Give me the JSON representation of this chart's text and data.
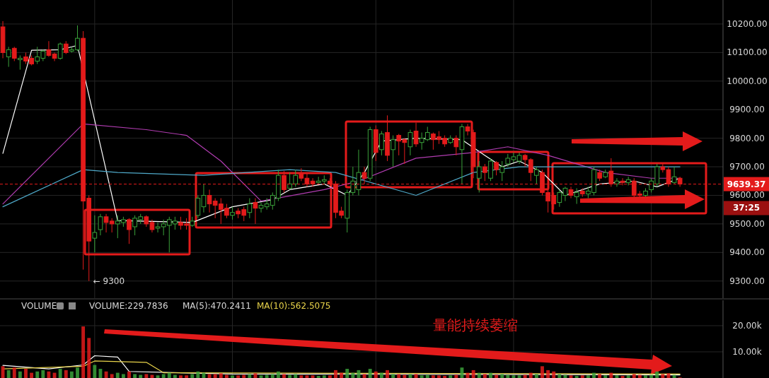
{
  "chart_data": [
    {
      "type": "candlestick",
      "categories": [
        null,
        null,
        null,
        null,
        null,
        null,
        null,
        null,
        null,
        null,
        null,
        null,
        null,
        null,
        null,
        null,
        null,
        null,
        null,
        null,
        null,
        null,
        null,
        null,
        null,
        null,
        null,
        null,
        null,
        null,
        null,
        null,
        null,
        null,
        null,
        null,
        null,
        null,
        null,
        null,
        null,
        null,
        null,
        null,
        null,
        null,
        null,
        null,
        null,
        null,
        null,
        null,
        null,
        null,
        null,
        null,
        null,
        null,
        null,
        null,
        null,
        null,
        null,
        null,
        null,
        null,
        null,
        null,
        null,
        null,
        null,
        null,
        null,
        null,
        null,
        null,
        null,
        null,
        null,
        null,
        null,
        null,
        null,
        null,
        null,
        null,
        null,
        null,
        null,
        null,
        null,
        null,
        null,
        null,
        null,
        null,
        null,
        null,
        null,
        null,
        null,
        null,
        null,
        null,
        null,
        null,
        null,
        null,
        null,
        null,
        null,
        null,
        null,
        null,
        null,
        null,
        null,
        null,
        null,
        null,
        null,
        null,
        null,
        null,
        null,
        null
      ],
      "ohlc": [
        [
          10190,
          10210,
          10080,
          10100
        ],
        [
          10085,
          10120,
          10050,
          10110
        ],
        [
          10115,
          10120,
          10070,
          10080
        ],
        [
          10075,
          10090,
          10040,
          10080
        ],
        [
          10085,
          10100,
          10060,
          10070
        ],
        [
          10080,
          10090,
          10055,
          10060
        ],
        [
          10070,
          10120,
          10060,
          10085
        ],
        [
          10080,
          10110,
          10070,
          10105
        ],
        [
          10110,
          10140,
          10085,
          10090
        ],
        [
          10095,
          10100,
          10070,
          10080
        ],
        [
          10080,
          10135,
          10075,
          10130
        ],
        [
          10130,
          10140,
          10095,
          10100
        ],
        [
          10105,
          10120,
          10100,
          10110
        ],
        [
          10110,
          10195,
          10105,
          10150
        ],
        [
          10150,
          10175,
          9340,
          9580
        ],
        [
          9590,
          9600,
          9300,
          9440
        ],
        [
          9450,
          9530,
          9400,
          9470
        ],
        [
          9480,
          9535,
          9460,
          9525
        ],
        [
          9525,
          9535,
          9470,
          9505
        ],
        [
          9510,
          9520,
          9470,
          9500
        ],
        [
          9500,
          9530,
          9450,
          9510
        ],
        [
          9505,
          9525,
          9490,
          9515
        ],
        [
          9515,
          9520,
          9430,
          9480
        ],
        [
          9490,
          9530,
          9460,
          9520
        ],
        [
          9515,
          9535,
          9500,
          9525
        ],
        [
          9525,
          9530,
          9490,
          9500
        ],
        [
          9505,
          9515,
          9470,
          9480
        ],
        [
          9485,
          9505,
          9470,
          9490
        ],
        [
          9490,
          9515,
          9460,
          9500
        ],
        [
          9495,
          9525,
          9400,
          9515
        ],
        [
          9500,
          9525,
          9480,
          9510
        ],
        [
          9505,
          9525,
          9480,
          9495
        ],
        [
          9500,
          9520,
          9480,
          9495
        ],
        [
          9495,
          9525,
          9490,
          9510
        ],
        [
          9530,
          9600,
          9520,
          9590
        ],
        [
          9560,
          9640,
          9540,
          9600
        ],
        [
          9600,
          9620,
          9540,
          9570
        ],
        [
          9580,
          9590,
          9520,
          9565
        ],
        [
          9570,
          9590,
          9500,
          9550
        ],
        [
          9555,
          9570,
          9520,
          9530
        ],
        [
          9530,
          9560,
          9515,
          9540
        ],
        [
          9545,
          9555,
          9520,
          9535
        ],
        [
          9550,
          9560,
          9510,
          9530
        ],
        [
          9540,
          9590,
          9520,
          9570
        ],
        [
          9575,
          9590,
          9500,
          9555
        ],
        [
          9555,
          9575,
          9540,
          9565
        ],
        [
          9560,
          9590,
          9550,
          9570
        ],
        [
          9565,
          9610,
          9550,
          9600
        ],
        [
          9590,
          9690,
          9580,
          9670
        ],
        [
          9670,
          9685,
          9610,
          9620
        ],
        [
          9625,
          9680,
          9620,
          9640
        ],
        [
          9640,
          9690,
          9630,
          9670
        ],
        [
          9675,
          9695,
          9650,
          9660
        ],
        [
          9660,
          9680,
          9630,
          9640
        ],
        [
          9650,
          9660,
          9630,
          9640
        ],
        [
          9645,
          9665,
          9640,
          9650
        ],
        [
          9650,
          9670,
          9640,
          9655
        ],
        [
          9650,
          9660,
          9630,
          9640
        ],
        [
          9640,
          9650,
          9520,
          9540
        ],
        [
          9545,
          9560,
          9520,
          9530
        ],
        [
          9520,
          9620,
          9470,
          9610
        ],
        [
          9610,
          9700,
          9600,
          9650
        ],
        [
          9620,
          9760,
          9600,
          9680
        ],
        [
          9680,
          9700,
          9640,
          9660
        ],
        [
          9660,
          9840,
          9650,
          9830
        ],
        [
          9830,
          9845,
          9720,
          9750
        ],
        [
          9760,
          9825,
          9740,
          9815
        ],
        [
          9820,
          9880,
          9720,
          9740
        ],
        [
          9760,
          9810,
          9700,
          9795
        ],
        [
          9810,
          9815,
          9740,
          9790
        ],
        [
          9795,
          9800,
          9710,
          9785
        ],
        [
          9770,
          9830,
          9740,
          9820
        ],
        [
          9825,
          9855,
          9770,
          9780
        ],
        [
          9785,
          9820,
          9760,
          9800
        ],
        [
          9795,
          9840,
          9790,
          9820
        ],
        [
          9815,
          9820,
          9760,
          9795
        ],
        [
          9805,
          9825,
          9780,
          9795
        ],
        [
          9800,
          9810,
          9770,
          9780
        ],
        [
          9785,
          9810,
          9780,
          9800
        ],
        [
          9800,
          9810,
          9740,
          9770
        ],
        [
          9760,
          9850,
          9640,
          9840
        ],
        [
          9840,
          9850,
          9810,
          9825
        ],
        [
          9820,
          9830,
          9660,
          9700
        ],
        [
          9660,
          9720,
          9610,
          9700
        ],
        [
          9700,
          9710,
          9650,
          9680
        ],
        [
          9660,
          9730,
          9650,
          9720
        ],
        [
          9715,
          9720,
          9670,
          9690
        ],
        [
          9680,
          9720,
          9650,
          9700
        ],
        [
          9710,
          9745,
          9700,
          9730
        ],
        [
          9725,
          9750,
          9715,
          9735
        ],
        [
          9720,
          9750,
          9710,
          9740
        ],
        [
          9740,
          9745,
          9700,
          9725
        ],
        [
          9725,
          9730,
          9650,
          9680
        ],
        [
          9670,
          9700,
          9640,
          9690
        ],
        [
          9680,
          9690,
          9600,
          9610
        ],
        [
          9610,
          9620,
          9540,
          9580
        ],
        [
          9600,
          9610,
          9550,
          9570
        ],
        [
          9575,
          9620,
          9560,
          9610
        ],
        [
          9600,
          9630,
          9580,
          9625
        ],
        [
          9620,
          9630,
          9590,
          9600
        ],
        [
          9595,
          9625,
          9570,
          9610
        ],
        [
          9615,
          9625,
          9595,
          9605
        ],
        [
          9605,
          9630,
          9590,
          9615
        ],
        [
          9610,
          9700,
          9600,
          9690
        ],
        [
          9680,
          9690,
          9650,
          9660
        ],
        [
          9665,
          9690,
          9660,
          9680
        ],
        [
          9685,
          9730,
          9630,
          9640
        ],
        [
          9640,
          9660,
          9630,
          9650
        ],
        [
          9650,
          9660,
          9635,
          9645
        ],
        [
          9645,
          9665,
          9635,
          9655
        ],
        [
          9650,
          9660,
          9590,
          9600
        ],
        [
          9605,
          9615,
          9590,
          9600
        ],
        [
          9600,
          9625,
          9595,
          9615
        ],
        [
          9620,
          9660,
          9610,
          9650
        ],
        [
          9640,
          9710,
          9630,
          9700
        ],
        [
          9700,
          9710,
          9680,
          9690
        ],
        [
          9690,
          9700,
          9630,
          9640
        ],
        [
          9645,
          9700,
          9640,
          9665
        ],
        [
          9660,
          9665,
          9630,
          9639.37
        ],
        null,
        null,
        null,
        null,
        null,
        null,
        null
      ],
      "colors": [
        "#e31b1b",
        "#3aa13a",
        "#e31b1b",
        "#3aa13a",
        "#e31b1b",
        "#e31b1b",
        "#3aa13a",
        "#3aa13a",
        "#e31b1b",
        "#e31b1b",
        "#3aa13a",
        "#e31b1b",
        "#3aa13a",
        "#3aa13a",
        "#e31b1b",
        "#e31b1b",
        "#3aa13a",
        "#3aa13a",
        "#e31b1b",
        "#e31b1b",
        "#3aa13a",
        "#3aa13a",
        "#e31b1b",
        "#3aa13a",
        "#3aa13a",
        "#e31b1b",
        "#e31b1b",
        "#3aa13a",
        "#3aa13a",
        "#3aa13a",
        "#3aa13a",
        "#e31b1b",
        "#e31b1b",
        "#3aa13a",
        "#3aa13a",
        "#3aa13a",
        "#e31b1b",
        "#e31b1b",
        "#e31b1b",
        "#e31b1b",
        "#3aa13a",
        "#e31b1b",
        "#e31b1b",
        "#3aa13a",
        "#e31b1b",
        "#3aa13a",
        "#3aa13a",
        "#3aa13a",
        "#3aa13a",
        "#e31b1b",
        "#3aa13a",
        "#3aa13a",
        "#e31b1b",
        "#e31b1b",
        "#e31b1b",
        "#3aa13a",
        "#3aa13a",
        "#e31b1b",
        "#e31b1b",
        "#e31b1b",
        "#3aa13a",
        "#3aa13a",
        "#3aa13a",
        "#e31b1b",
        "#3aa13a",
        "#e31b1b",
        "#3aa13a",
        "#e31b1b",
        "#3aa13a",
        "#e31b1b",
        "#e31b1b",
        "#3aa13a",
        "#e31b1b",
        "#3aa13a",
        "#3aa13a",
        "#e31b1b",
        "#e31b1b",
        "#e31b1b",
        "#3aa13a",
        "#e31b1b",
        "#3aa13a",
        "#e31b1b",
        "#e31b1b",
        "#3aa13a",
        "#e31b1b",
        "#3aa13a",
        "#e31b1b",
        "#3aa13a",
        "#3aa13a",
        "#3aa13a",
        "#3aa13a",
        "#e31b1b",
        "#e31b1b",
        "#3aa13a",
        "#e31b1b",
        "#e31b1b",
        "#e31b1b",
        "#3aa13a",
        "#3aa13a",
        "#e31b1b",
        "#3aa13a",
        "#e31b1b",
        "#3aa13a",
        "#3aa13a",
        "#e31b1b",
        "#3aa13a",
        "#e31b1b",
        "#3aa13a",
        "#e31b1b",
        "#3aa13a",
        "#e31b1b",
        "#e31b1b",
        "#3aa13a",
        "#3aa13a",
        "#3aa13a",
        "#e31b1b",
        "#e31b1b",
        "#3aa13a",
        "#e31b1b",
        null,
        null,
        null,
        null,
        null,
        null,
        null
      ],
      "series": [
        {
          "type": "line",
          "color": "#ffffff",
          "values": [
            9747,
            null,
            null,
            null,
            null,
            10108,
            null,
            null,
            null,
            null,
            10110,
            null,
            null,
            10125,
            null,
            null,
            null,
            null,
            null,
            null,
            9512,
            null,
            null,
            null,
            null,
            null,
            null,
            null,
            null,
            null,
            null,
            null,
            null,
            9505,
            null,
            null,
            null,
            null,
            null,
            null,
            9560,
            null,
            null,
            null,
            null,
            null,
            null,
            9585,
            null,
            null,
            9620,
            null,
            null,
            null,
            null,
            null,
            9640,
            null,
            9620,
            null,
            9600,
            null,
            null,
            9680,
            null,
            null,
            9790,
            null,
            null,
            null,
            null,
            null,
            9800,
            null,
            null,
            null,
            null,
            null,
            null,
            null,
            9795,
            null,
            null,
            null,
            9740,
            null,
            null,
            9700,
            null,
            null,
            9720,
            null,
            null,
            null,
            9680,
            null,
            null,
            null,
            9600,
            null,
            null,
            null,
            null,
            null,
            9640,
            null,
            null,
            null,
            null,
            null,
            9650,
            null,
            null,
            null,
            9630,
            null,
            null,
            null,
            9660,
            null,
            null,
            null,
            null,
            null,
            null,
            null
          ]
        },
        {
          "type": "line",
          "color": "#b03cb0",
          "values": [
            9570,
            null,
            null,
            null,
            null,
            null,
            null,
            null,
            null,
            null,
            null,
            null,
            null,
            null,
            9850,
            null,
            null,
            null,
            null,
            null,
            null,
            null,
            null,
            null,
            null,
            9830,
            null,
            null,
            null,
            null,
            null,
            null,
            9810,
            null,
            null,
            null,
            null,
            null,
            9720,
            null,
            null,
            null,
            null,
            null,
            null,
            9580,
            null,
            null,
            null,
            null,
            null,
            null,
            null,
            null,
            null,
            null,
            9620,
            null,
            null,
            null,
            null,
            null,
            9650,
            null,
            null,
            null,
            null,
            null,
            null,
            null,
            null,
            null,
            9730,
            null,
            null,
            null,
            null,
            null,
            null,
            null,
            null,
            null,
            9750,
            null,
            null,
            null,
            null,
            null,
            9770,
            null,
            null,
            null,
            null,
            null,
            null,
            9740,
            null,
            null,
            null,
            null,
            null,
            null,
            null,
            null,
            null,
            9680,
            null,
            null,
            null,
            null,
            null,
            null,
            null,
            9660,
            null,
            null,
            null,
            null,
            9660,
            null,
            null,
            null,
            null,
            null,
            null,
            null
          ]
        },
        {
          "type": "line",
          "color": "#4fa9c9",
          "values": [
            9560,
            null,
            null,
            null,
            null,
            null,
            null,
            null,
            null,
            null,
            null,
            null,
            null,
            null,
            9690,
            null,
            null,
            null,
            null,
            null,
            9680,
            null,
            null,
            null,
            null,
            null,
            null,
            null,
            null,
            null,
            null,
            null,
            null,
            null,
            null,
            9670,
            null,
            null,
            null,
            null,
            null,
            null,
            null,
            null,
            null,
            null,
            null,
            null,
            null,
            null,
            9690,
            null,
            null,
            null,
            null,
            null,
            null,
            null,
            9680,
            null,
            null,
            null,
            null,
            null,
            null,
            null,
            null,
            null,
            null,
            null,
            null,
            null,
            9600,
            null,
            null,
            null,
            null,
            null,
            null,
            null,
            null,
            null,
            9680,
            null,
            null,
            null,
            null,
            null,
            null,
            null,
            9700,
            null,
            null,
            null,
            null,
            null,
            null,
            null,
            null,
            null,
            9700,
            null,
            null,
            null,
            null,
            null,
            null,
            null,
            null,
            null,
            null,
            null,
            null,
            null,
            null,
            null,
            null,
            null,
            9700,
            null,
            null,
            null,
            null,
            null,
            null,
            null
          ]
        }
      ],
      "ylim": [
        9240,
        10284
      ],
      "yticks": [
        {
          "value": 9300,
          "label": "9300.00"
        },
        {
          "value": 9400,
          "label": "9400.00"
        },
        {
          "value": 9500,
          "label": "9500.00"
        },
        {
          "value": 9600,
          "label": "9600.00"
        },
        {
          "value": 9700,
          "label": "9700.00"
        },
        {
          "value": 9800,
          "label": "9800.00"
        },
        {
          "value": 9900,
          "label": "9900.00"
        },
        {
          "value": 10000,
          "label": "10000.00"
        },
        {
          "value": 10100,
          "label": "10100.00"
        },
        {
          "value": 10200,
          "label": "10200.00"
        }
      ],
      "grid": true,
      "tick_labels": "y",
      "ref_lines": [
        {
          "axis": "y",
          "value": 9639.37,
          "label": "9639.37",
          "color": "#e31b1b",
          "line_style": "dashed"
        }
      ],
      "annotations": [
        "← 9300",
        "37:25"
      ]
    },
    {
      "type": "bar",
      "categories": [
        null,
        null,
        null,
        null,
        null,
        null,
        null,
        null,
        null,
        null,
        null,
        null,
        null,
        null,
        null,
        null,
        null,
        null,
        null,
        null,
        null,
        null,
        null,
        null,
        null,
        null,
        null,
        null,
        null,
        null,
        null,
        null,
        null,
        null,
        null,
        null,
        null,
        null,
        null,
        null,
        null,
        null,
        null,
        null,
        null,
        null,
        null,
        null,
        null,
        null,
        null,
        null,
        null,
        null,
        null,
        null,
        null,
        null,
        null,
        null,
        null,
        null,
        null,
        null,
        null,
        null,
        null,
        null,
        null,
        null,
        null,
        null,
        null,
        null,
        null,
        null,
        null,
        null,
        null,
        null,
        null,
        null,
        null,
        null,
        null,
        null,
        null,
        null,
        null,
        null,
        null,
        null,
        null,
        null,
        null,
        null,
        null,
        null,
        null,
        null,
        null,
        null,
        null,
        null,
        null,
        null,
        null,
        null,
        null,
        null,
        null,
        null,
        null,
        null,
        null,
        null,
        null,
        null,
        null,
        null,
        null,
        null,
        null,
        null,
        null,
        null
      ],
      "series": [
        {
          "type": "bar",
          "values": [
            4500,
            3000,
            4000,
            2500,
            3500,
            2000,
            2500,
            3000,
            2500,
            2000,
            3500,
            3000,
            2500,
            4000,
            19700,
            15300,
            5000,
            3500,
            2500,
            1500,
            2000,
            1500,
            2500,
            1500,
            1200,
            1500,
            1200,
            1000,
            1500,
            2000,
            1200,
            1000,
            1000,
            1500,
            2500,
            2000,
            1500,
            1500,
            1800,
            1200,
            1000,
            1000,
            1200,
            1500,
            1800,
            1000,
            1200,
            1500,
            2500,
            1500,
            1200,
            1500,
            1000,
            1000,
            1000,
            800,
            1000,
            1000,
            3000,
            2000,
            3500,
            2000,
            3000,
            1500,
            3500,
            2500,
            2000,
            3000,
            1500,
            1500,
            1200,
            1500,
            1500,
            1000,
            1200,
            1000,
            1000,
            800,
            1000,
            1200,
            4000,
            2000,
            3000,
            2000,
            1500,
            2000,
            1200,
            1500,
            1200,
            1000,
            1000,
            1200,
            2000,
            1500,
            4500,
            3000,
            2500,
            1500,
            1200,
            1000,
            800,
            1000,
            1000,
            2000,
            1500,
            1000,
            2000,
            1000,
            800,
            1000,
            1500,
            1200,
            1000,
            1200,
            2500,
            1500,
            1800,
            1200,
            200,
            null,
            null,
            null,
            null,
            null,
            null,
            null
          ],
          "colors": [
            "#e31b1b",
            "#3aa13a",
            "#e31b1b",
            "#3aa13a",
            "#e31b1b",
            "#e31b1b",
            "#3aa13a",
            "#3aa13a",
            "#e31b1b",
            "#e31b1b",
            "#3aa13a",
            "#e31b1b",
            "#3aa13a",
            "#3aa13a",
            "#e31b1b",
            "#e31b1b",
            "#3aa13a",
            "#3aa13a",
            "#e31b1b",
            "#e31b1b",
            "#3aa13a",
            "#3aa13a",
            "#e31b1b",
            "#3aa13a",
            "#3aa13a",
            "#e31b1b",
            "#e31b1b",
            "#3aa13a",
            "#3aa13a",
            "#3aa13a",
            "#3aa13a",
            "#e31b1b",
            "#e31b1b",
            "#3aa13a",
            "#3aa13a",
            "#3aa13a",
            "#e31b1b",
            "#e31b1b",
            "#e31b1b",
            "#e31b1b",
            "#3aa13a",
            "#e31b1b",
            "#e31b1b",
            "#3aa13a",
            "#e31b1b",
            "#3aa13a",
            "#3aa13a",
            "#3aa13a",
            "#3aa13a",
            "#e31b1b",
            "#3aa13a",
            "#3aa13a",
            "#e31b1b",
            "#e31b1b",
            "#e31b1b",
            "#3aa13a",
            "#3aa13a",
            "#e31b1b",
            "#e31b1b",
            "#e31b1b",
            "#3aa13a",
            "#3aa13a",
            "#3aa13a",
            "#e31b1b",
            "#3aa13a",
            "#e31b1b",
            "#3aa13a",
            "#e31b1b",
            "#3aa13a",
            "#e31b1b",
            "#e31b1b",
            "#3aa13a",
            "#e31b1b",
            "#3aa13a",
            "#3aa13a",
            "#e31b1b",
            "#e31b1b",
            "#e31b1b",
            "#3aa13a",
            "#e31b1b",
            "#3aa13a",
            "#e31b1b",
            "#e31b1b",
            "#3aa13a",
            "#e31b1b",
            "#3aa13a",
            "#e31b1b",
            "#3aa13a",
            "#3aa13a",
            "#3aa13a",
            "#3aa13a",
            "#e31b1b",
            "#e31b1b",
            "#3aa13a",
            "#e31b1b",
            "#e31b1b",
            "#e31b1b",
            "#3aa13a",
            "#3aa13a",
            "#e31b1b",
            "#3aa13a",
            "#e31b1b",
            "#3aa13a",
            "#3aa13a",
            "#e31b1b",
            "#3aa13a",
            "#e31b1b",
            "#3aa13a",
            "#e31b1b",
            "#3aa13a",
            "#e31b1b",
            "#e31b1b",
            "#3aa13a",
            "#3aa13a",
            "#3aa13a",
            "#e31b1b",
            "#e31b1b",
            "#3aa13a",
            "#e31b1b",
            null,
            null,
            null,
            null,
            null,
            null,
            null
          ]
        },
        {
          "type": "line",
          "color": "#ffffff",
          "values": [
            4800,
            null,
            null,
            null,
            null,
            null,
            null,
            null,
            3500,
            null,
            null,
            null,
            null,
            null,
            5000,
            null,
            8500,
            null,
            null,
            null,
            8000,
            null,
            2500,
            null,
            null,
            null,
            null,
            null,
            null,
            null,
            null,
            null,
            null,
            null,
            null,
            null,
            null,
            null,
            null,
            null,
            1500,
            null,
            null,
            null,
            null,
            null,
            null,
            null,
            null,
            null,
            null,
            null,
            null,
            null,
            null,
            null,
            null,
            null,
            null,
            null,
            null,
            null,
            null,
            null,
            null,
            null,
            null,
            null,
            null,
            null,
            null,
            null,
            null,
            null,
            null,
            null,
            null,
            null,
            null,
            null,
            null,
            null,
            null,
            null,
            null,
            null,
            null,
            null,
            null,
            null,
            null,
            null,
            null,
            null,
            null,
            null,
            null,
            null,
            null,
            null,
            null,
            null,
            null,
            null,
            null,
            null,
            null,
            null,
            null,
            null,
            null,
            null,
            null,
            null,
            null,
            null,
            null,
            null,
            1200,
            null,
            null,
            null,
            null,
            null,
            null,
            null
          ]
        },
        {
          "type": "line",
          "color": "#e8d34a",
          "values": [
            3500,
            null,
            null,
            null,
            null,
            null,
            null,
            null,
            null,
            null,
            null,
            null,
            null,
            null,
            4500,
            null,
            6500,
            null,
            null,
            null,
            null,
            null,
            null,
            null,
            null,
            6000,
            null,
            null,
            2000,
            null,
            null,
            null,
            null,
            null,
            null,
            null,
            null,
            null,
            null,
            null,
            null,
            null,
            null,
            null,
            null,
            null,
            null,
            null,
            null,
            null,
            null,
            null,
            null,
            null,
            null,
            null,
            null,
            null,
            null,
            null,
            null,
            null,
            null,
            null,
            null,
            null,
            null,
            null,
            null,
            null,
            null,
            null,
            null,
            null,
            null,
            null,
            null,
            null,
            null,
            null,
            null,
            null,
            null,
            null,
            null,
            null,
            null,
            null,
            null,
            null,
            null,
            null,
            null,
            null,
            null,
            null,
            null,
            null,
            null,
            null,
            null,
            null,
            null,
            null,
            null,
            null,
            null,
            null,
            null,
            null,
            null,
            null,
            null,
            null,
            null,
            null,
            null,
            null,
            1500,
            null,
            null,
            null,
            null,
            null,
            null,
            null
          ]
        }
      ],
      "ylim": [
        0,
        29700
      ],
      "yticks": [
        {
          "value": 10000,
          "label": "10.00k"
        },
        {
          "value": 20000,
          "label": "20.00k"
        }
      ],
      "grid": true,
      "tick_labels": "y",
      "annotations": [
        "VOLUME",
        "VOLUME:229.7836",
        "MA(5):470.2411",
        "MA(10):562.5075",
        "量能持续萎缩"
      ]
    }
  ]
}
